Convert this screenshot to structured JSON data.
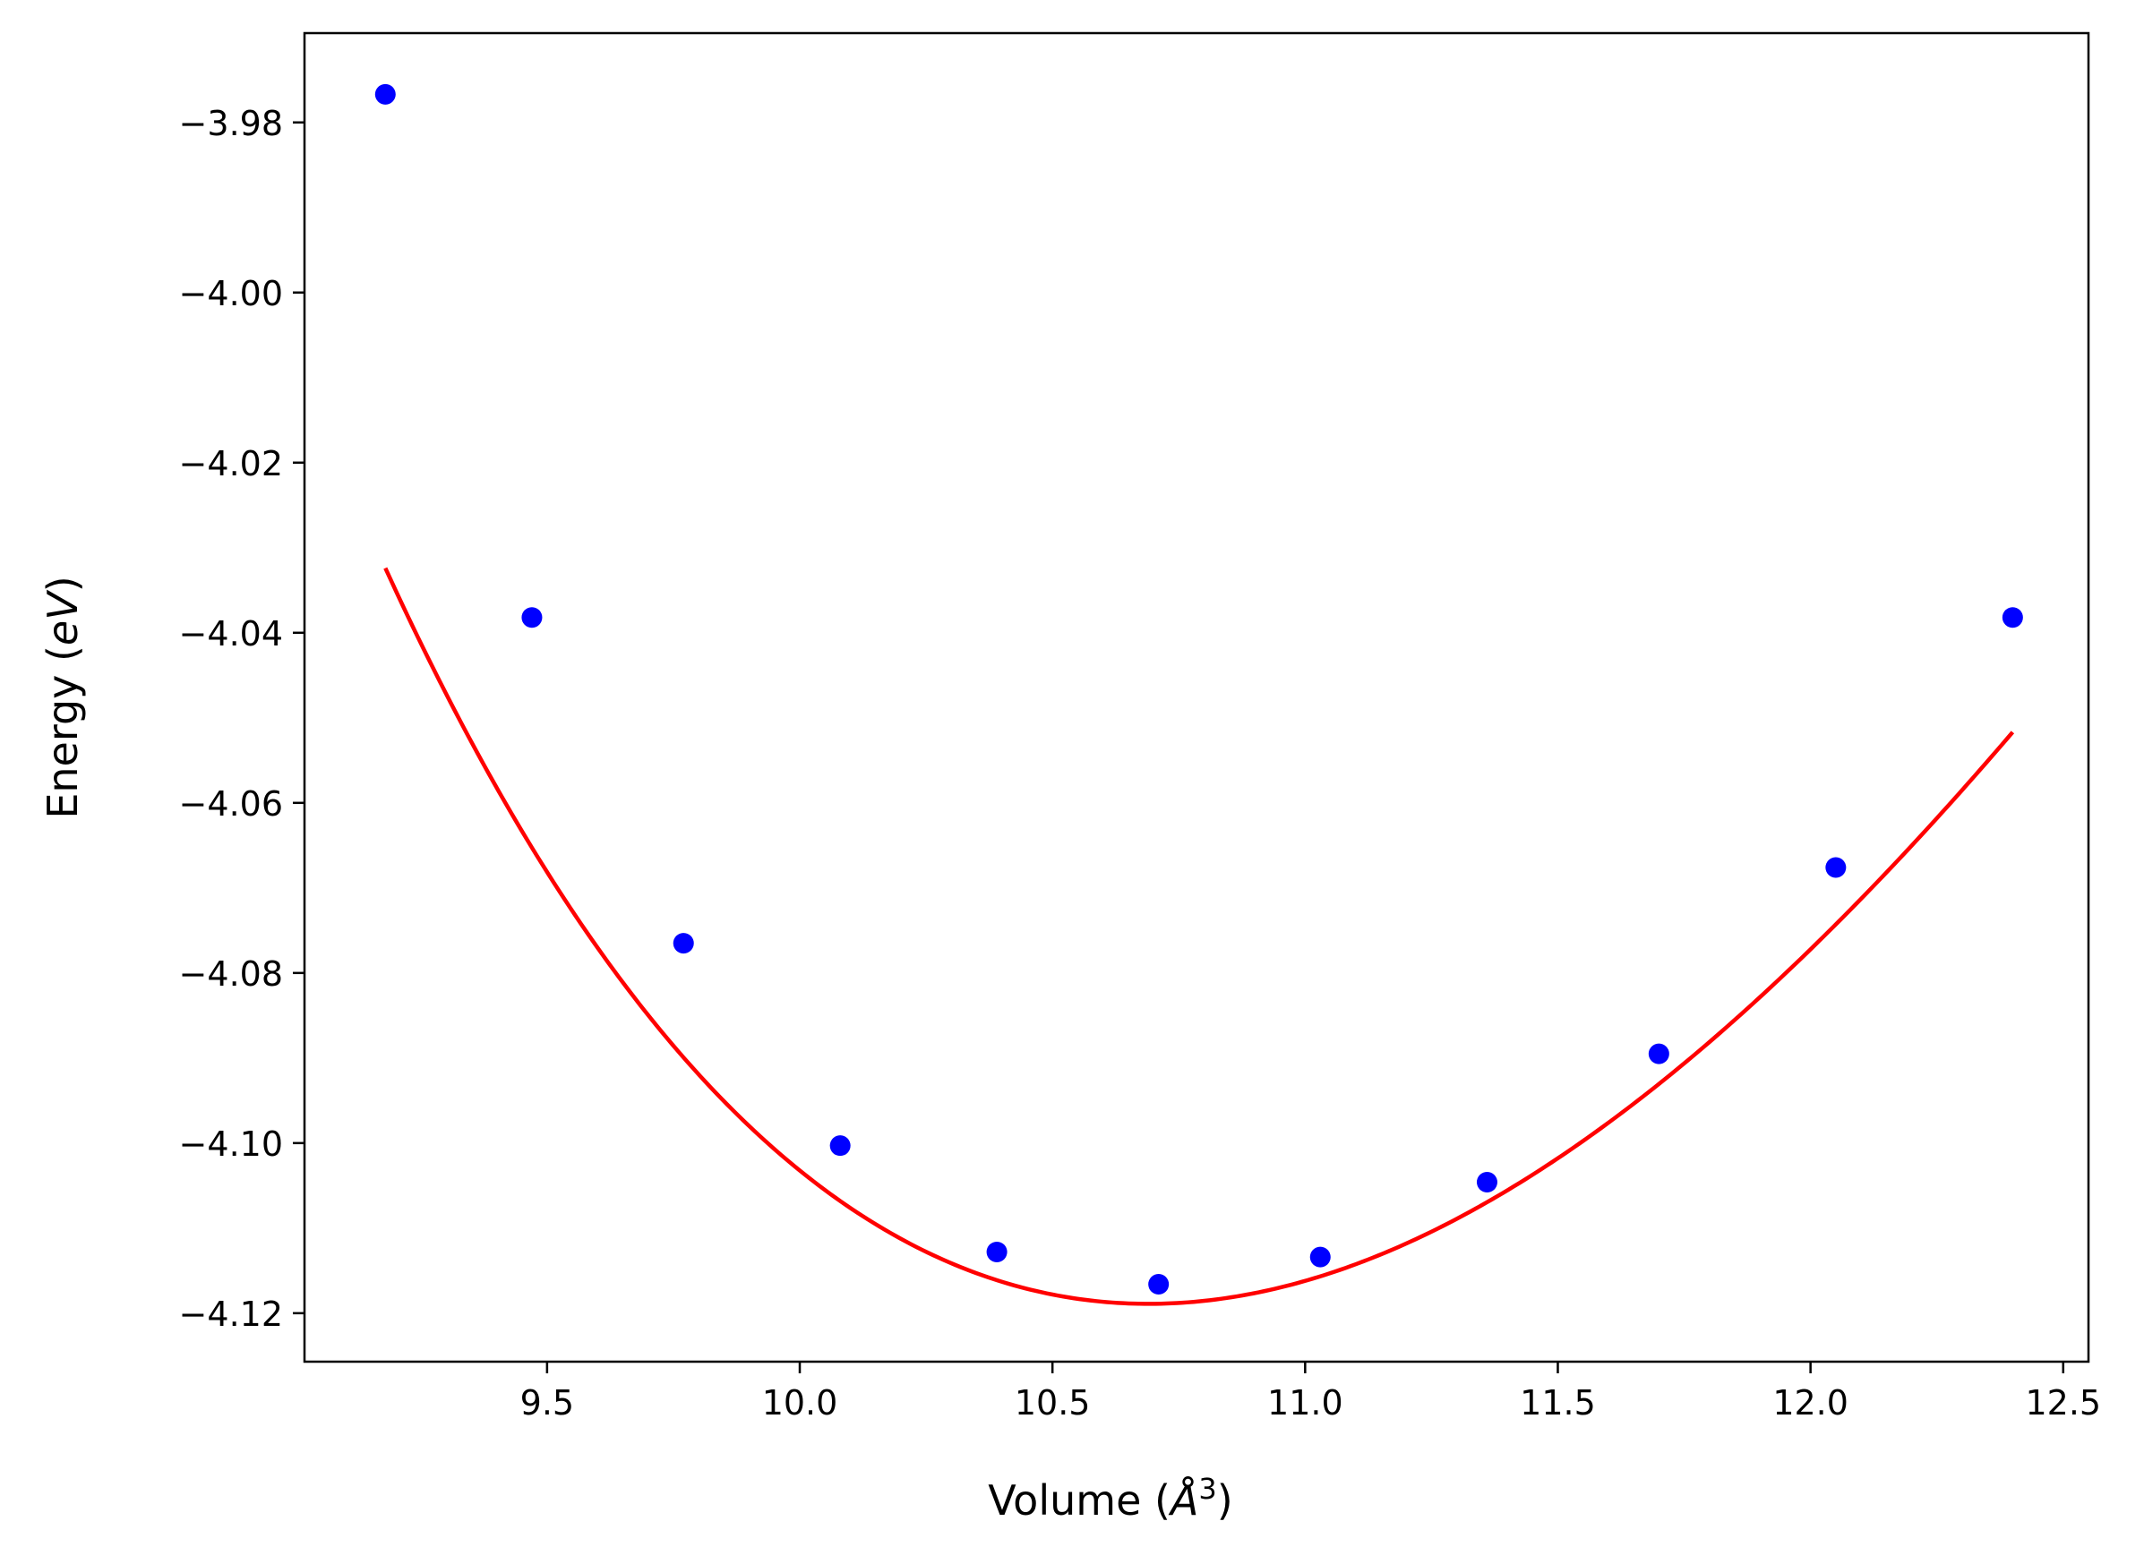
{
  "chart_data": {
    "type": "scatter",
    "title": "",
    "xlabel": "Volume ($\\AA^3$)",
    "ylabel": "Energy ($eV$)",
    "xlabel_parts": {
      "pre": "Volume (",
      "var": "Å",
      "sup": "3",
      "post": ")"
    },
    "ylabel_parts": {
      "pre": "Energy (",
      "var": "eV",
      "post": ")"
    },
    "xlim": [
      9.02,
      12.55
    ],
    "ylim": [
      -4.1257,
      -3.9695
    ],
    "x_ticks": [
      9.5,
      10.0,
      10.5,
      11.0,
      11.5,
      12.0,
      12.5
    ],
    "x_tick_labels": [
      "9.5",
      "10.0",
      "10.5",
      "11.0",
      "11.5",
      "12.0",
      "12.5"
    ],
    "y_ticks": [
      -3.98,
      -4.0,
      -4.02,
      -4.04,
      -4.06,
      -4.08,
      -4.1,
      -4.12
    ],
    "y_tick_labels": [
      "−3.98",
      "−4.00",
      "−4.02",
      "−4.04",
      "−4.06",
      "−4.08",
      "−4.10",
      "−4.12"
    ],
    "grid": false,
    "legend": "none",
    "series": [
      {
        "kind": "scatter",
        "color": "#0000ff",
        "x": [
          9.18,
          9.47,
          9.77,
          10.08,
          10.39,
          10.71,
          11.03,
          11.36,
          11.7,
          12.05,
          12.4
        ],
        "y": [
          -3.9767,
          -4.0382,
          -4.0765,
          -4.1003,
          -4.1128,
          -4.1166,
          -4.1134,
          -4.1046,
          -4.0895,
          -4.0676,
          -4.0382
        ]
      },
      {
        "kind": "line",
        "color": "#ff0000",
        "fit": {
          "form": "E0 + 9*V0*B/16*((V0/V)^(2/3)-1)^3*Bp + 9*V0*B/16*((V0/V)^(2/3)-1)^2*(6-4*(V0/V)^(2/3))",
          "E0": -4.1189,
          "V0": 10.69,
          "B": 0.63,
          "Bp": 4.0,
          "x_range": [
            9.18,
            12.4
          ]
        }
      }
    ]
  }
}
